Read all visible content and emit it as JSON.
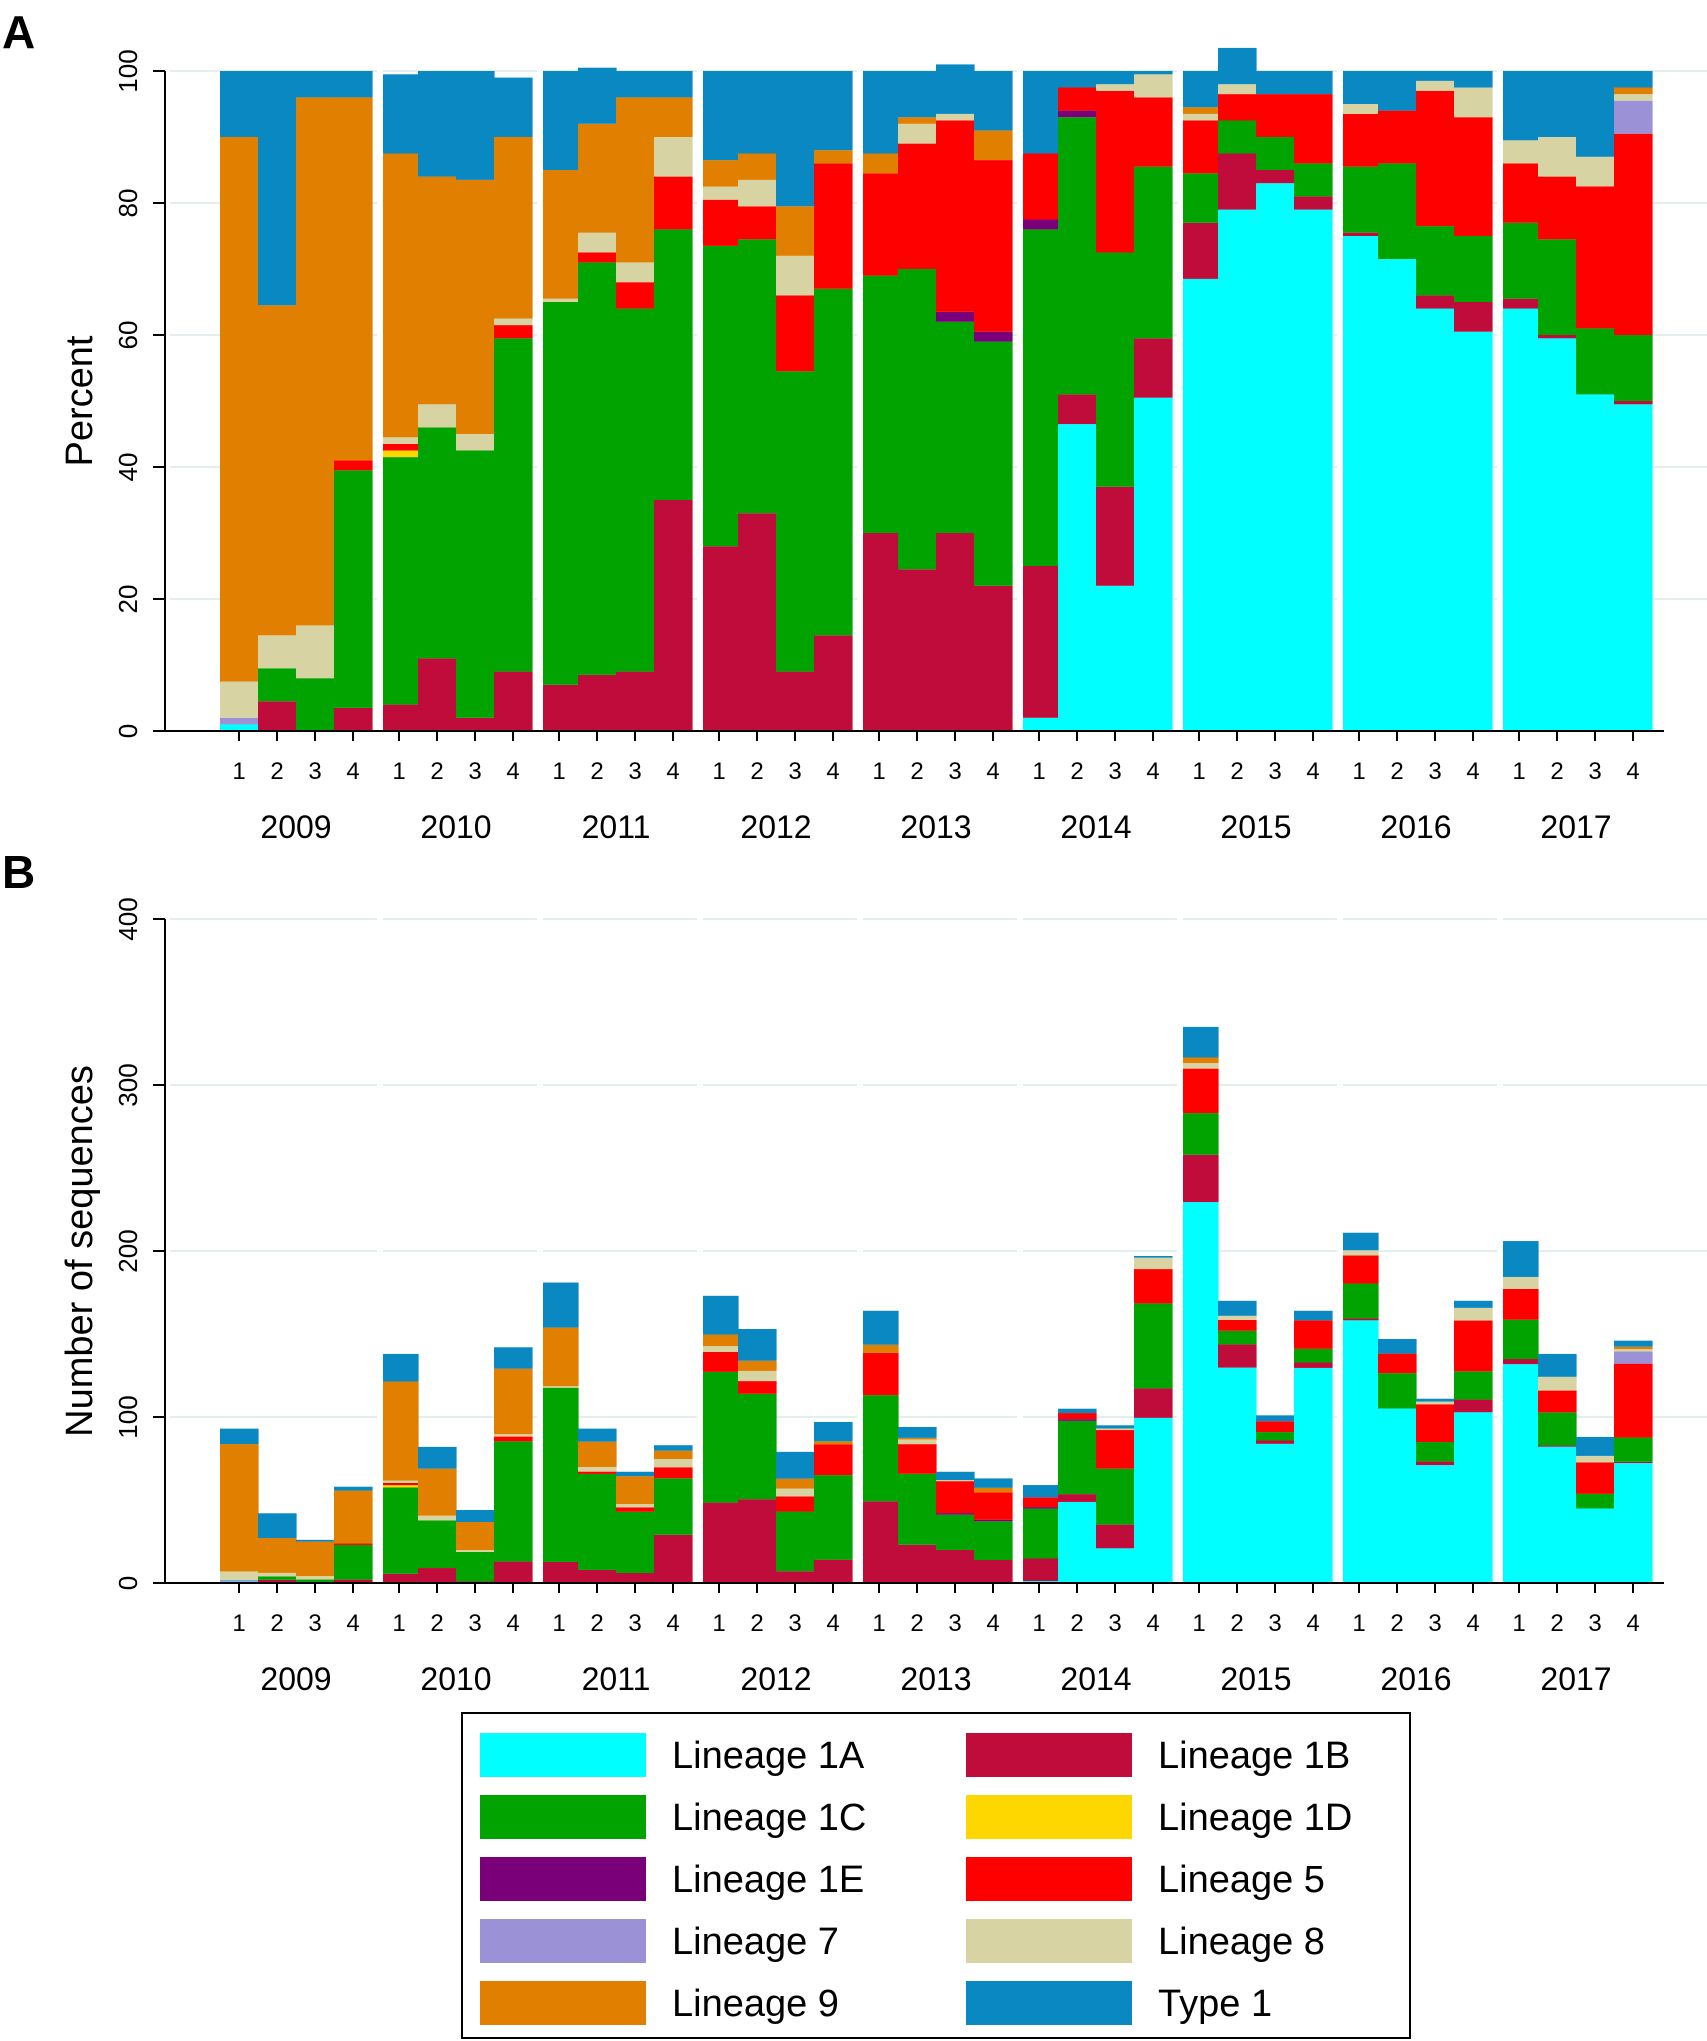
{
  "panels": {
    "a_label": "A",
    "b_label": "B"
  },
  "lineage_names": [
    "Lineage 1A",
    "Lineage 1B",
    "Lineage 1C",
    "Lineage 1D",
    "Lineage 1E",
    "Lineage 5",
    "Lineage 7",
    "Lineage 8",
    "Lineage 9",
    "Type 1"
  ],
  "lineage_keys": [
    "l1a",
    "l1b",
    "l1c",
    "l1d",
    "l1e",
    "l5",
    "l7",
    "l8",
    "l9",
    "t1"
  ],
  "colors": {
    "l1a": "#00ffff",
    "l1b": "#c00c3a",
    "l1c": "#00a300",
    "l1d": "#ffd700",
    "l1e": "#7a007a",
    "l5": "#ff0000",
    "l7": "#9b91d6",
    "l8": "#d8d3a3",
    "l9": "#e07f00",
    "t1": "#0a88c2",
    "grid": "#e3eef0",
    "axis": "#000000"
  },
  "chart_data": [
    {
      "type": "bar",
      "stacked": true,
      "panel": "A",
      "ylabel": "Percent",
      "ylim": [
        0,
        100
      ],
      "yticks": [
        0,
        20,
        40,
        60,
        80,
        100
      ],
      "years": [
        "2009",
        "2010",
        "2011",
        "2012",
        "2013",
        "2014",
        "2015",
        "2016",
        "2017"
      ],
      "quarters": [
        "1",
        "2",
        "3",
        "4"
      ],
      "series": [
        {
          "name": "Lineage 1A",
          "key": "l1a",
          "values": [
            1,
            0,
            0,
            0,
            0,
            0,
            0,
            0,
            0,
            0,
            0,
            0,
            0,
            0,
            0,
            0,
            0,
            0,
            0,
            0,
            2,
            46.5,
            22,
            50.5,
            68.5,
            79,
            83,
            79,
            75,
            71.5,
            64,
            60.5,
            64,
            59.5,
            51,
            49.5
          ]
        },
        {
          "name": "Lineage 1B",
          "key": "l1b",
          "values": [
            0,
            4.5,
            0,
            3.5,
            4,
            11,
            2,
            9,
            7,
            8.5,
            9,
            35,
            28,
            33,
            9,
            14.5,
            30,
            24.5,
            30,
            22,
            23,
            4.5,
            15,
            9,
            8.5,
            8.5,
            2,
            2,
            0.5,
            0,
            2,
            4.5,
            1.5,
            0.5,
            0,
            0.5
          ]
        },
        {
          "name": "Lineage 1C",
          "key": "l1c",
          "values": [
            0,
            5,
            8,
            36,
            37.5,
            35,
            40.5,
            50.5,
            58,
            62.5,
            55,
            41,
            45.5,
            41.5,
            45.5,
            52.5,
            39,
            45.5,
            32,
            37,
            51,
            42,
            35.5,
            26,
            7.5,
            5,
            5,
            5,
            10,
            14.5,
            10.5,
            10,
            11.5,
            14.5,
            10,
            10
          ]
        },
        {
          "name": "Lineage 1D",
          "key": "l1d",
          "values": [
            0,
            0,
            0,
            0,
            1,
            0,
            0,
            0,
            0,
            0,
            0,
            0,
            0,
            0,
            0,
            0,
            0,
            0,
            0,
            0,
            0,
            0,
            0,
            0,
            0,
            0,
            0,
            0,
            0,
            0,
            0,
            0,
            0,
            0,
            0,
            0
          ]
        },
        {
          "name": "Lineage 1E",
          "key": "l1e",
          "values": [
            0,
            0,
            0,
            0,
            0,
            0,
            0,
            0,
            0,
            0,
            0,
            0,
            0,
            0,
            0,
            0,
            0,
            0,
            1.5,
            1.5,
            1.5,
            1,
            0,
            0,
            0,
            0,
            0,
            0,
            0,
            0,
            0,
            0,
            0,
            0,
            0,
            0
          ]
        },
        {
          "name": "Lineage 5",
          "key": "l5",
          "values": [
            0,
            0,
            0,
            1.5,
            1,
            0,
            0,
            2,
            0,
            1.5,
            4,
            8,
            7,
            5,
            11.5,
            19,
            15.5,
            19,
            29,
            26,
            10,
            3.5,
            24.5,
            10.5,
            8,
            4,
            6.5,
            10.5,
            8,
            8,
            20.5,
            18,
            9,
            9.5,
            21.5,
            30.5
          ]
        },
        {
          "name": "Lineage 7",
          "key": "l7",
          "values": [
            1,
            0,
            0,
            0,
            0,
            0,
            0,
            0,
            0,
            0,
            0,
            0,
            0,
            0,
            0,
            0,
            0,
            0,
            0,
            0,
            0,
            0,
            0,
            0,
            0,
            0,
            0,
            0,
            0,
            0,
            0,
            0,
            0,
            0,
            0,
            5
          ]
        },
        {
          "name": "Lineage 8",
          "key": "l8",
          "values": [
            5.5,
            5,
            8,
            0,
            1,
            3.5,
            2.5,
            1,
            0.5,
            3,
            3,
            6,
            2,
            4,
            6,
            0,
            0,
            3,
            1,
            0,
            0,
            0,
            1,
            3.5,
            1,
            1.5,
            0,
            0,
            1.5,
            0,
            1.5,
            4.5,
            3.5,
            6,
            4.5,
            1
          ]
        },
        {
          "name": "Lineage 9",
          "key": "l9",
          "values": [
            82.5,
            50,
            80,
            55,
            43,
            34.5,
            38.5,
            27.5,
            19.5,
            16.5,
            25,
            6,
            4,
            4,
            7.5,
            2,
            3,
            1,
            0,
            4.5,
            0,
            0,
            0,
            0,
            1,
            0,
            0,
            0,
            0,
            0,
            0,
            0,
            0,
            0,
            0,
            1
          ]
        },
        {
          "name": "Type 1",
          "key": "t1",
          "values": [
            10,
            35.5,
            4,
            4,
            12,
            16,
            16.5,
            9,
            15,
            8.5,
            4,
            4,
            13.5,
            12.5,
            20.5,
            12,
            12.5,
            7,
            7.5,
            9,
            12.5,
            2.5,
            2,
            0.5,
            5.5,
            5.5,
            3.5,
            3.5,
            5,
            6,
            1.5,
            2.5,
            10.5,
            10,
            13,
            2.5
          ]
        }
      ]
    },
    {
      "type": "bar",
      "stacked": true,
      "panel": "B",
      "ylabel": "Number of sequences",
      "ylim": [
        0,
        400
      ],
      "yticks": [
        0,
        100,
        200,
        300,
        400
      ],
      "years": [
        "2009",
        "2010",
        "2011",
        "2012",
        "2013",
        "2014",
        "2015",
        "2016",
        "2017"
      ],
      "quarters": [
        "1",
        "2",
        "3",
        "4"
      ],
      "totals": [
        93,
        42,
        26,
        58,
        138,
        82,
        44,
        142,
        181,
        93,
        67,
        83,
        173,
        153,
        79,
        97,
        164,
        94,
        67,
        63,
        59,
        105,
        95,
        197,
        335,
        170,
        101,
        164,
        211,
        147,
        111,
        170,
        206,
        138,
        88,
        146
      ]
    }
  ],
  "legend": {
    "entries": [
      {
        "label": "Lineage 1A",
        "key": "l1a"
      },
      {
        "label": "Lineage 1B",
        "key": "l1b"
      },
      {
        "label": "Lineage 1C",
        "key": "l1c"
      },
      {
        "label": "Lineage 1D",
        "key": "l1d"
      },
      {
        "label": "Lineage 1E",
        "key": "l1e"
      },
      {
        "label": "Lineage 5",
        "key": "l5"
      },
      {
        "label": "Lineage 7",
        "key": "l7"
      },
      {
        "label": "Lineage 8",
        "key": "l8"
      },
      {
        "label": "Lineage 9",
        "key": "l9"
      },
      {
        "label": "Type 1",
        "key": "t1"
      }
    ]
  }
}
